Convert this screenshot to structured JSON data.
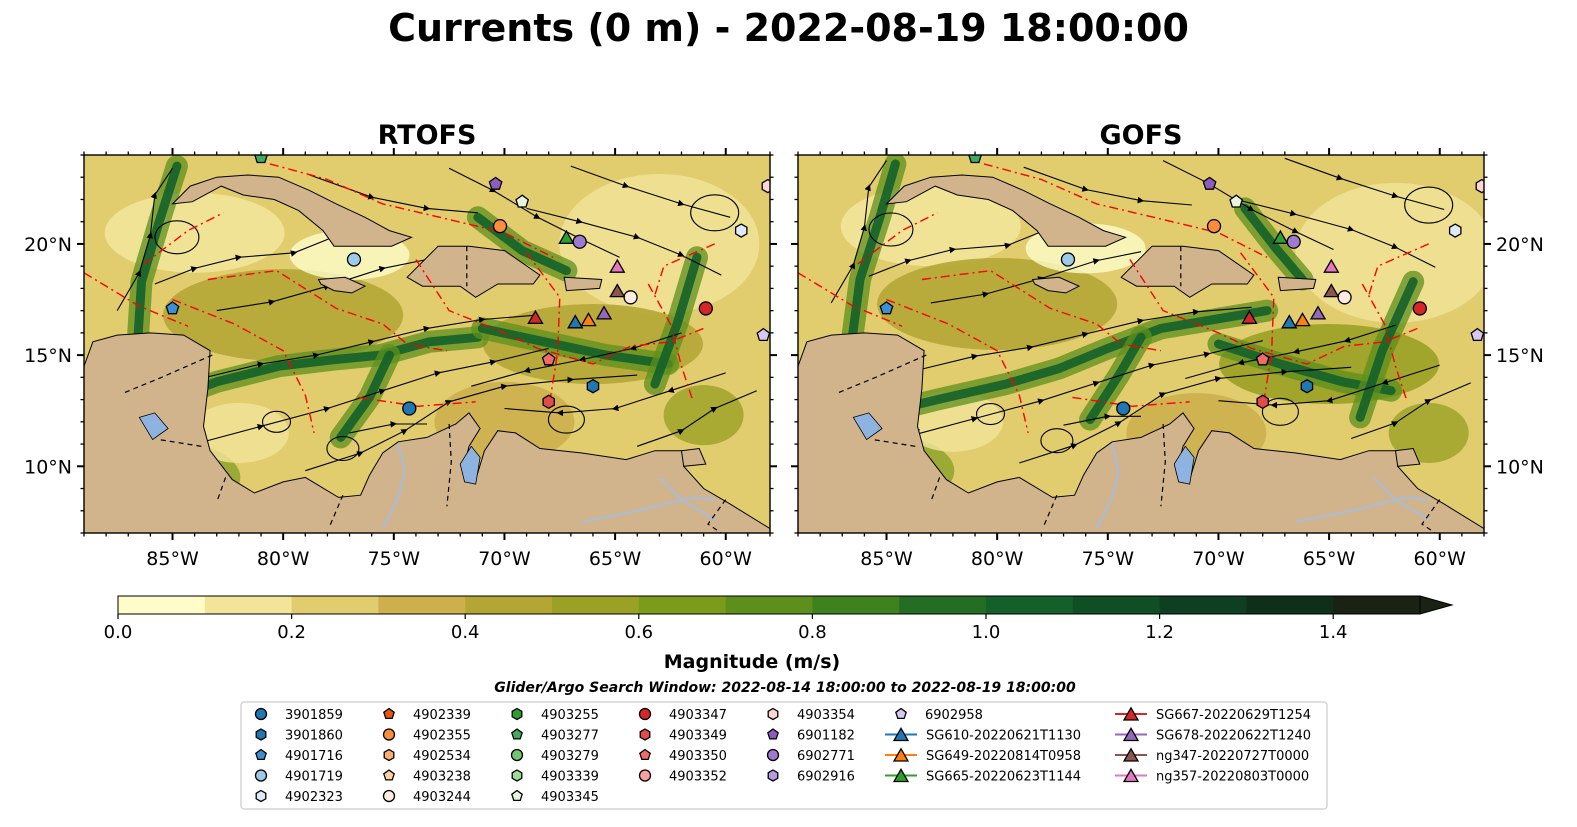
{
  "title": "Currents (0 m) - 2022-08-19 18:00:00",
  "panels": [
    {
      "title": "RTOFS"
    },
    {
      "title": "GOFS"
    }
  ],
  "map": {
    "lon_range": [
      -89,
      -58
    ],
    "lat_range": [
      7,
      24
    ],
    "x_ticks": [
      "85°W",
      "80°W",
      "75°W",
      "70°W",
      "65°W",
      "60°W"
    ],
    "y_ticks": [
      "20°N",
      "15°N",
      "10°N"
    ]
  },
  "colors": {
    "land": "#d2b48c",
    "lakes": "#8fb3e0",
    "rivers": "#a6bddb",
    "eez": "#ff0000",
    "colormap": [
      "#fefcc9",
      "#f2e59a",
      "#e1cc6e",
      "#cdb04c",
      "#b4a635",
      "#9aa125",
      "#7d9b1b",
      "#5e8f1c",
      "#3f801f",
      "#236e24",
      "#14602a",
      "#104f25",
      "#0e3f20",
      "#102f1a",
      "#1a2214"
    ]
  },
  "colorbar": {
    "label": "Magnitude (m/s)",
    "ticks": [
      "0.0",
      "0.2",
      "0.4",
      "0.6",
      "0.8",
      "1.0",
      "1.2",
      "1.4"
    ]
  },
  "subtitle": "Glider/Argo Search Window: 2022-08-14 18:00:00 to 2022-08-19 18:00:00",
  "legend": [
    [
      {
        "label": "3901859",
        "marker": "circle",
        "color": "#1f77b4"
      },
      {
        "label": "3901860",
        "marker": "hexagon",
        "color": "#1f77b4"
      },
      {
        "label": "4901716",
        "marker": "pentagon",
        "color": "#3a8fd6"
      },
      {
        "label": "4901719",
        "marker": "circle",
        "color": "#9ecae9"
      },
      {
        "label": "4902323",
        "marker": "hexagon",
        "color": "#deebf7"
      }
    ],
    [
      {
        "label": "4902339",
        "marker": "pentagon",
        "color": "#e6550d"
      },
      {
        "label": "4902355",
        "marker": "circle",
        "color": "#fd8d3c"
      },
      {
        "label": "4902534",
        "marker": "hexagon",
        "color": "#fdae6b"
      },
      {
        "label": "4903238",
        "marker": "pentagon",
        "color": "#fdd0a2"
      },
      {
        "label": "4903244",
        "marker": "circle",
        "color": "#feedde"
      }
    ],
    [
      {
        "label": "4903255",
        "marker": "hexagon",
        "color": "#2ca02c"
      },
      {
        "label": "4903277",
        "marker": "pentagon",
        "color": "#41ab5d"
      },
      {
        "label": "4903279",
        "marker": "circle",
        "color": "#74c476"
      },
      {
        "label": "4903339",
        "marker": "hexagon",
        "color": "#a1d99b"
      },
      {
        "label": "4903345",
        "marker": "pentagon",
        "color": "#e5f5e0"
      }
    ],
    [
      {
        "label": "4903347",
        "marker": "circle",
        "color": "#d62728"
      },
      {
        "label": "4903349",
        "marker": "hexagon",
        "color": "#e34a4a"
      },
      {
        "label": "4903350",
        "marker": "pentagon",
        "color": "#f16b6b"
      },
      {
        "label": "4903352",
        "marker": "circle",
        "color": "#fc9f9f"
      }
    ],
    [
      {
        "label": "4903354",
        "marker": "hexagon",
        "color": "#fcd5d5"
      },
      {
        "label": "6901182",
        "marker": "pentagon",
        "color": "#8e5bbf"
      },
      {
        "label": "6902771",
        "marker": "circle",
        "color": "#9e7ad0"
      },
      {
        "label": "6902916",
        "marker": "hexagon",
        "color": "#b59be0"
      }
    ],
    [
      {
        "label": "6902958",
        "marker": "pentagon",
        "color": "#d8c8f0"
      },
      {
        "label": "SG610-20220621T1130",
        "marker": "triangle",
        "color": "#1f77b4"
      },
      {
        "label": "SG649-20220814T0958",
        "marker": "triangle",
        "color": "#ff7f0e"
      },
      {
        "label": "SG665-20220623T1144",
        "marker": "triangle",
        "color": "#2ca02c"
      }
    ],
    [
      {
        "label": "SG667-20220629T1254",
        "marker": "triangle",
        "color": "#d62728"
      },
      {
        "label": "SG678-20220622T1240",
        "marker": "triangle",
        "color": "#9467bd"
      },
      {
        "label": "ng347-20220727T0000",
        "marker": "triangle",
        "color": "#8c564b"
      },
      {
        "label": "ng357-20220803T0000",
        "marker": "triangle",
        "color": "#e377c2"
      }
    ]
  ],
  "markers": [
    {
      "lon": -74.3,
      "lat": 12.6,
      "marker": "circle",
      "color": "#1f77b4"
    },
    {
      "lon": -66.0,
      "lat": 13.6,
      "marker": "hexagon",
      "color": "#1f77b4"
    },
    {
      "lon": -85.0,
      "lat": 17.1,
      "marker": "pentagon",
      "color": "#3a8fd6"
    },
    {
      "lon": -76.8,
      "lat": 19.3,
      "marker": "circle",
      "color": "#9ecae9"
    },
    {
      "lon": -59.3,
      "lat": 20.6,
      "marker": "hexagon",
      "color": "#deebf7"
    },
    {
      "lon": -70.2,
      "lat": 20.8,
      "marker": "circle",
      "color": "#fd8d3c"
    },
    {
      "lon": -64.3,
      "lat": 17.6,
      "marker": "circle",
      "color": "#feedde"
    },
    {
      "lon": -81.0,
      "lat": 23.9,
      "marker": "pentagon",
      "color": "#41ab5d"
    },
    {
      "lon": -69.2,
      "lat": 21.9,
      "marker": "pentagon",
      "color": "#e5f5e0"
    },
    {
      "lon": -60.9,
      "lat": 17.1,
      "marker": "circle",
      "color": "#d62728"
    },
    {
      "lon": -68.0,
      "lat": 14.8,
      "marker": "pentagon",
      "color": "#f16b6b"
    },
    {
      "lon": -68.0,
      "lat": 12.9,
      "marker": "hexagon",
      "color": "#e34a4a"
    },
    {
      "lon": -58.1,
      "lat": 22.6,
      "marker": "hexagon",
      "color": "#fcd5d5"
    },
    {
      "lon": -70.4,
      "lat": 22.7,
      "marker": "pentagon",
      "color": "#8e5bbf"
    },
    {
      "lon": -66.6,
      "lat": 20.1,
      "marker": "circle",
      "color": "#9e7ad0"
    },
    {
      "lon": -58.3,
      "lat": 15.9,
      "marker": "pentagon",
      "color": "#d8c8f0"
    },
    {
      "lon": -66.8,
      "lat": 16.5,
      "marker": "triangle",
      "color": "#1f77b4"
    },
    {
      "lon": -66.2,
      "lat": 16.6,
      "marker": "triangle",
      "color": "#ff7f0e"
    },
    {
      "lon": -67.2,
      "lat": 20.3,
      "marker": "triangle",
      "color": "#2ca02c"
    },
    {
      "lon": -68.6,
      "lat": 16.7,
      "marker": "triangle",
      "color": "#d62728"
    },
    {
      "lon": -65.5,
      "lat": 16.9,
      "marker": "triangle",
      "color": "#9467bd"
    },
    {
      "lon": -64.9,
      "lat": 17.9,
      "marker": "triangle",
      "color": "#8c564b"
    },
    {
      "lon": -64.9,
      "lat": 19.0,
      "marker": "triangle",
      "color": "#e377c2"
    }
  ]
}
